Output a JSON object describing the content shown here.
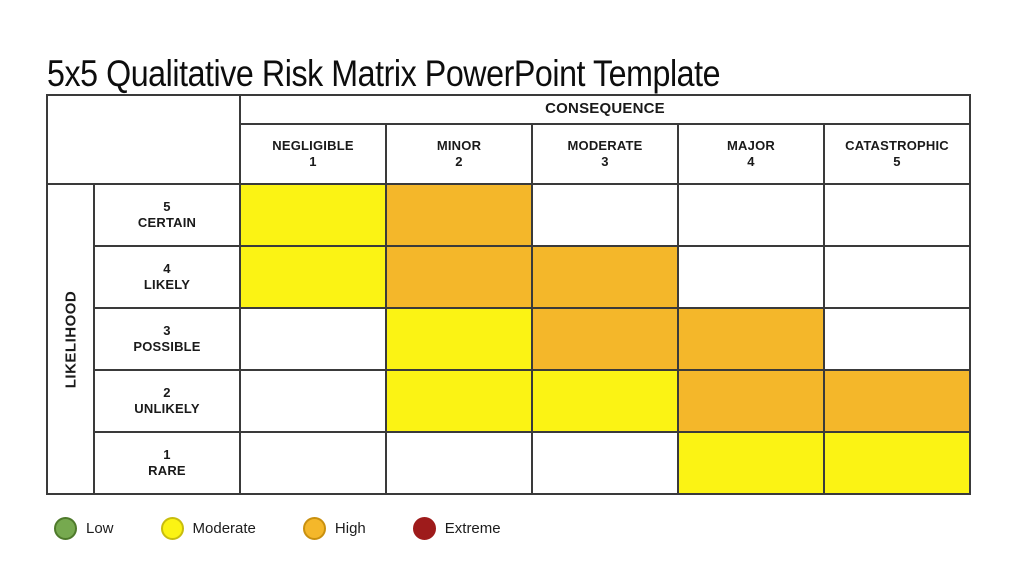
{
  "slide": {
    "title": "5x5 Qualitative Risk Matrix PowerPoint Template"
  },
  "matrix": {
    "consequence_header": "CONSEQUENCE",
    "likelihood_header": "LIKELIHOOD",
    "consequence_levels": [
      {
        "label": "NEGLIGIBLE",
        "value": "1"
      },
      {
        "label": "MINOR",
        "value": "2"
      },
      {
        "label": "MODERATE",
        "value": "3"
      },
      {
        "label": "MAJOR",
        "value": "4"
      },
      {
        "label": "CATASTROPHIC",
        "value": "5"
      }
    ],
    "likelihood_levels": [
      {
        "value": "5",
        "label": "CERTAIN"
      },
      {
        "value": "4",
        "label": "LIKELY"
      },
      {
        "value": "3",
        "label": "POSSIBLE"
      },
      {
        "value": "2",
        "label": "UNLIKELY"
      },
      {
        "value": "1",
        "label": "RARE"
      }
    ],
    "cells": [
      [
        "moderate",
        "high",
        "none",
        "none",
        "none"
      ],
      [
        "moderate",
        "high",
        "high",
        "none",
        "none"
      ],
      [
        "none",
        "moderate",
        "high",
        "high",
        "none"
      ],
      [
        "none",
        "moderate",
        "moderate",
        "high",
        "high"
      ],
      [
        "none",
        "none",
        "none",
        "moderate",
        "moderate"
      ]
    ]
  },
  "colors": {
    "none": "#FFFFFF",
    "moderate": "#FBF314",
    "high": "#F4B72A",
    "low": "#76A94F",
    "extreme": "#9E1B1B",
    "grid_line": "#3A3A3A"
  },
  "legend": {
    "items": [
      {
        "label": "Low",
        "fill": "#76A94F",
        "border": "#4E7A2B"
      },
      {
        "label": "Moderate",
        "fill": "#FBF314",
        "border": "#C8BD0E"
      },
      {
        "label": "High",
        "fill": "#F4B72A",
        "border": "#C9900F"
      },
      {
        "label": "Extreme",
        "fill": "#9E1B1B",
        "border": "#9E1B1B"
      }
    ]
  },
  "chart_data": {
    "type": "heatmap",
    "title": "5x5 Qualitative Risk Matrix PowerPoint Template",
    "x_axis_label": "CONSEQUENCE",
    "y_axis_label": "LIKELIHOOD",
    "x_categories": [
      "NEGLIGIBLE 1",
      "MINOR 2",
      "MODERATE 3",
      "MAJOR 4",
      "CATASTROPHIC 5"
    ],
    "y_categories": [
      "5 CERTAIN",
      "4 LIKELY",
      "3 POSSIBLE",
      "2 UNLIKELY",
      "1 RARE"
    ],
    "values": [
      [
        "Moderate",
        "High",
        "",
        "",
        ""
      ],
      [
        "Moderate",
        "High",
        "High",
        "",
        ""
      ],
      [
        "",
        "Moderate",
        "High",
        "High",
        ""
      ],
      [
        "",
        "Moderate",
        "Moderate",
        "High",
        "High"
      ],
      [
        "",
        "",
        "",
        "Moderate",
        "Moderate"
      ]
    ],
    "cell_colors": {
      "Moderate": "#FBF314",
      "High": "#F4B72A",
      "": "#FFFFFF"
    },
    "legend": [
      "Low",
      "Moderate",
      "High",
      "Extreme"
    ],
    "legend_position": "bottom-left",
    "grid": true
  }
}
